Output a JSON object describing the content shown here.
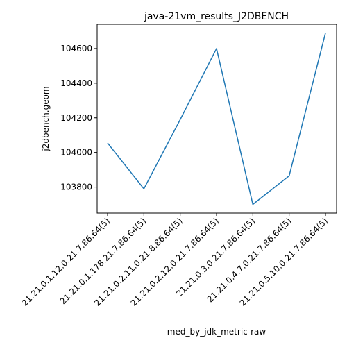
{
  "chart_data": {
    "type": "line",
    "title": "java-21vm_results_J2DBENCH",
    "xlabel": "med_by_jdk_metric-raw",
    "ylabel": "j2dbench.geom",
    "categories": [
      "21.21.0.1.12.0.21.7.86.64(5)",
      "21.21.0.1.178.21.7.86.64(5)",
      "21.21.0.2.11.0.21.8.86.64(5)",
      "21.21.0.2.12.0.21.7.86.64(5)",
      "21.21.0.3.0.21.7.86.64(5)",
      "21.21.0.4.7.0.21.7.86.64(5)",
      "21.21.0.5.10.0.21.7.86.64(5)"
    ],
    "series": [
      {
        "values": [
          104055,
          103790,
          104190,
          104600,
          103700,
          103865,
          104690
        ],
        "color": "#1f77b4"
      }
    ],
    "ylim": [
      103650,
      104740
    ],
    "yticks": [
      103800,
      104000,
      104200,
      104400,
      104600
    ],
    "grid": false,
    "legend": "none"
  }
}
